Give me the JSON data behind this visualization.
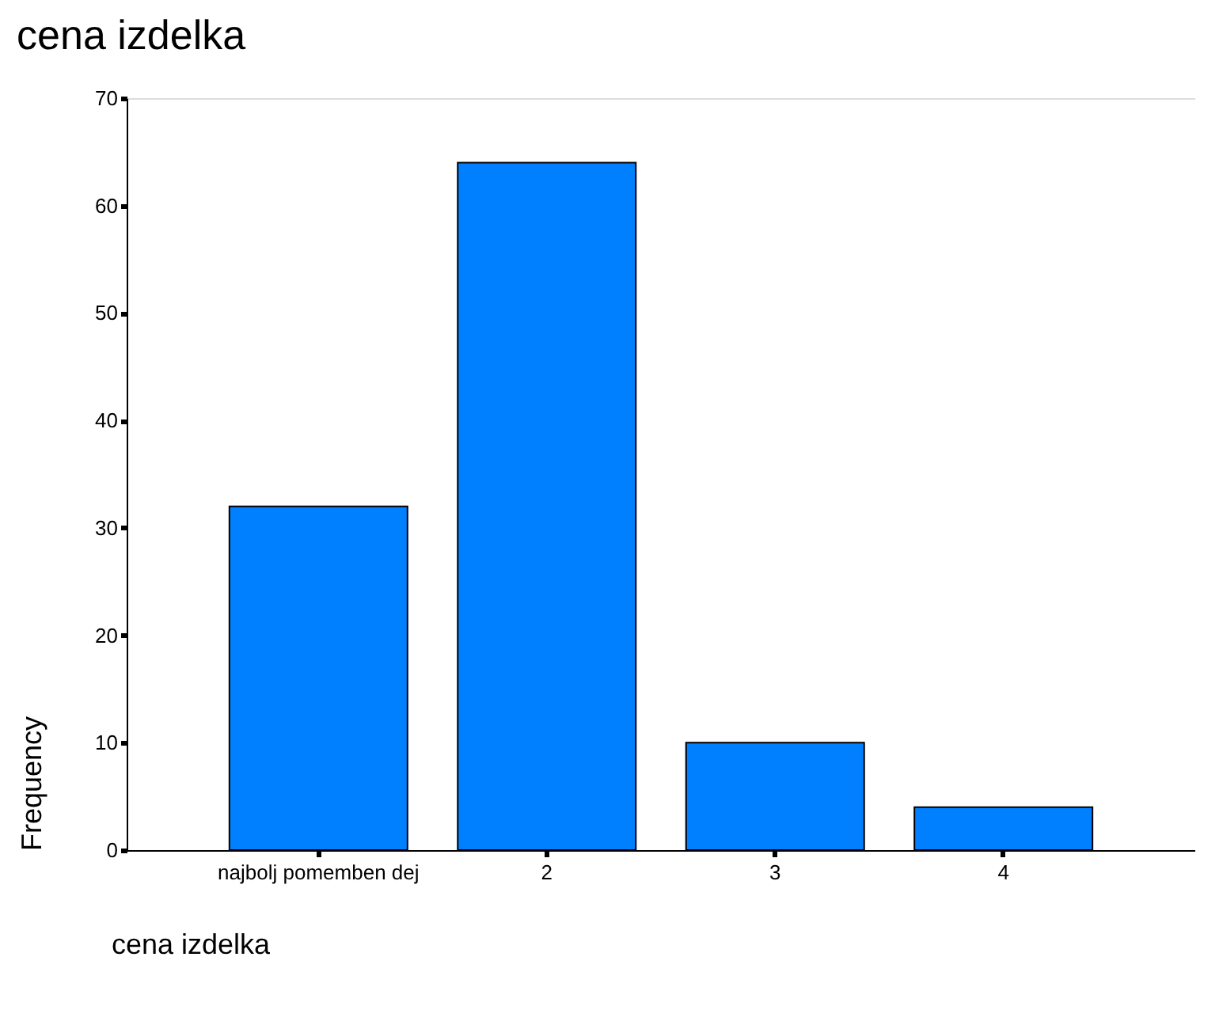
{
  "chart_data": {
    "type": "bar",
    "title": "cena izdelka",
    "xlabel": "cena izdelka",
    "ylabel": "Frequency",
    "categories": [
      "najbolj pomemben dej",
      "2",
      "3",
      "4"
    ],
    "values": [
      32,
      64,
      10,
      4
    ],
    "color": "#0080ff",
    "ylim": [
      0,
      70
    ],
    "yticks": [
      0,
      10,
      20,
      30,
      40,
      50,
      60,
      70
    ],
    "grid": false
  }
}
